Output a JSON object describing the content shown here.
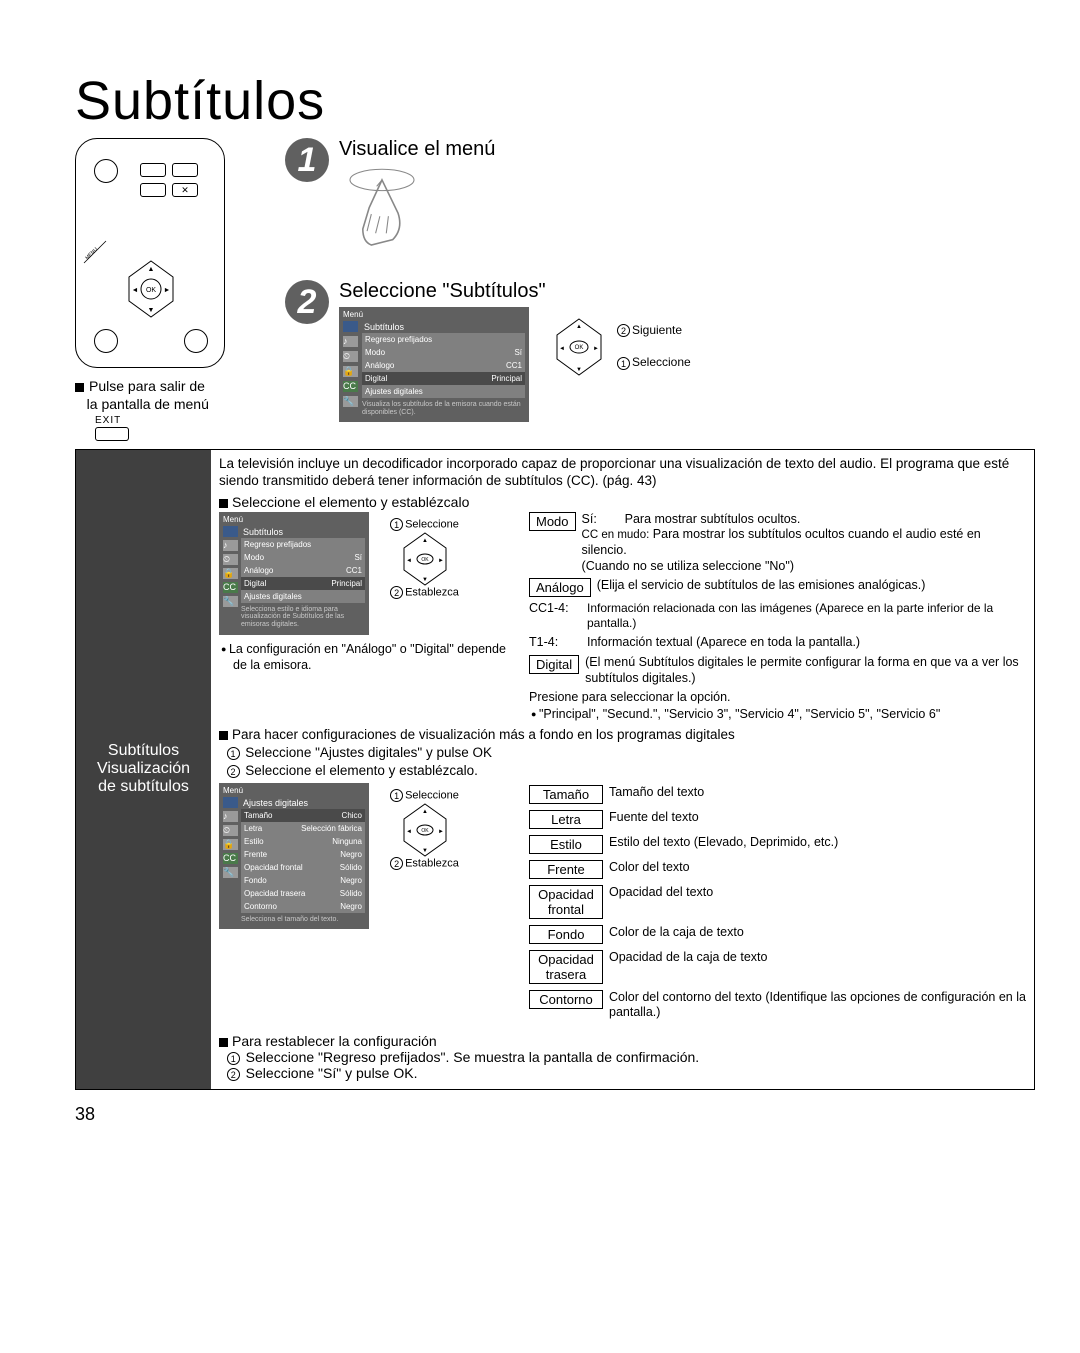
{
  "page_number": "38",
  "title": "Subtítulos",
  "remote_note": {
    "line1": "Pulse para salir de",
    "line2": "la pantalla de menú",
    "exit": "EXIT"
  },
  "step1": {
    "num": "1",
    "heading": "Visualice el menú"
  },
  "step2": {
    "num": "2",
    "heading": "Seleccione \"Subtítulos\"",
    "dpad": {
      "next": "Siguiente",
      "select": "Seleccione"
    },
    "menu": {
      "title": "Menú",
      "section": "Subtítulos",
      "rows": [
        {
          "label": "Regreso prefijados",
          "value": ""
        },
        {
          "label": "Modo",
          "value": "Sí"
        },
        {
          "label": "Análogo",
          "value": "CC1"
        },
        {
          "label": "Digital",
          "value": "Principal"
        },
        {
          "label": "Ajustes digitales",
          "value": ""
        }
      ],
      "footer": "Visualiza los subtítulos de la emisora cuando están disponibles (CC)."
    }
  },
  "lower": {
    "left": {
      "l1": "Subtítulos",
      "l2": "Visualización",
      "l3": "de subtítulos"
    },
    "intro": "La televisión incluye un decodificador incorporado capaz de proporcionar una visualización de texto del audio. El programa que esté siendo transmitido deberá tener información de subtítulos (CC). (pág. 43)",
    "select_set": "Seleccione el elemento y establézcalo",
    "menuA": {
      "title": "Menú",
      "section": "Subtítulos",
      "rows": [
        {
          "label": "Regreso prefijados",
          "value": ""
        },
        {
          "label": "Modo",
          "value": "Sí"
        },
        {
          "label": "Análogo",
          "value": "CC1"
        },
        {
          "label": "Digital",
          "value": "Principal"
        },
        {
          "label": "Ajustes digitales",
          "value": ""
        }
      ],
      "footer": "Selecciona estilo e idioma para visualización de Subtítulos de las emisoras digitales."
    },
    "dpad": {
      "select": "Seleccione",
      "set": "Establezca"
    },
    "note_dep": "La configuración en \"Análogo\" o \"Digital\" depende de la emisora.",
    "defs": {
      "modo": {
        "box": "Modo",
        "si_label": "Sí:",
        "si_text": "Para mostrar subtítulos ocultos.",
        "mudo_label": "CC en mudo:",
        "mudo_text": "Para mostrar los subtítulos ocultos cuando el audio esté en silencio.",
        "no": "(Cuando no se utiliza seleccione \"No\")"
      },
      "analogo": {
        "box": "Análogo",
        "text": "(Elija el servicio de subtítulos de las emisiones analógicas.)",
        "cc14_label": "CC1-4:",
        "cc14_text": "Información relacionada con las imágenes (Aparece en la parte inferior de la pantalla.)",
        "t14_label": "T1-4:",
        "t14_text": "Información textual (Aparece en toda la pantalla.)"
      },
      "digital": {
        "box": "Digital",
        "text": "(El menú Subtítulos digitales le permite configurar la forma en que va a ver los subtítulos digitales.)",
        "press": "Presione para seleccionar la opción.",
        "opts": "\"Principal\", \"Secund.\", \"Servicio 3\", \"Servicio 4\", \"Servicio 5\", \"Servicio 6\""
      }
    },
    "digital_conf": {
      "head": "Para hacer configuraciones de visualización más a fondo en los programas digitales",
      "s1": "Seleccione \"Ajustes digitales\" y pulse OK",
      "s2": "Seleccione el elemento y establézcalo."
    },
    "menuB": {
      "title": "Menú",
      "section": "Ajustes digitales",
      "rows": [
        {
          "label": "Tamaño",
          "value": "Chico"
        },
        {
          "label": "Letra",
          "value": "Selección fábrica"
        },
        {
          "label": "Estilo",
          "value": "Ninguna"
        },
        {
          "label": "Frente",
          "value": "Negro"
        },
        {
          "label": "Opacidad frontal",
          "value": "Sólido"
        },
        {
          "label": "Fondo",
          "value": "Negro"
        },
        {
          "label": "Opacidad trasera",
          "value": "Sólido"
        },
        {
          "label": "Contorno",
          "value": "Negro"
        }
      ],
      "footer": "Selecciona el tamaño del texto."
    },
    "tableB": [
      {
        "box": "Tamaño",
        "text": "Tamaño del texto"
      },
      {
        "box": "Letra",
        "text": "Fuente del texto"
      },
      {
        "box": "Estilo",
        "text": "Estilo del texto (Elevado, Deprimido, etc.)"
      },
      {
        "box": "Frente",
        "text": "Color del texto"
      },
      {
        "box": "Opacidad frontal",
        "text": "Opacidad del texto"
      },
      {
        "box": "Fondo",
        "text": "Color de la caja de texto"
      },
      {
        "box": "Opacidad trasera",
        "text": "Opacidad de la caja de texto"
      },
      {
        "box": "Contorno",
        "text": "Color del contorno del texto (Identifique las opciones de configuración en la pantalla.)"
      }
    ],
    "reset": {
      "head": "Para restablecer la configuración",
      "s1": "Seleccione \"Regreso prefijados\". Se muestra la pantalla de confirmación.",
      "s2": "Seleccione \"Sí\" y pulse OK."
    }
  }
}
